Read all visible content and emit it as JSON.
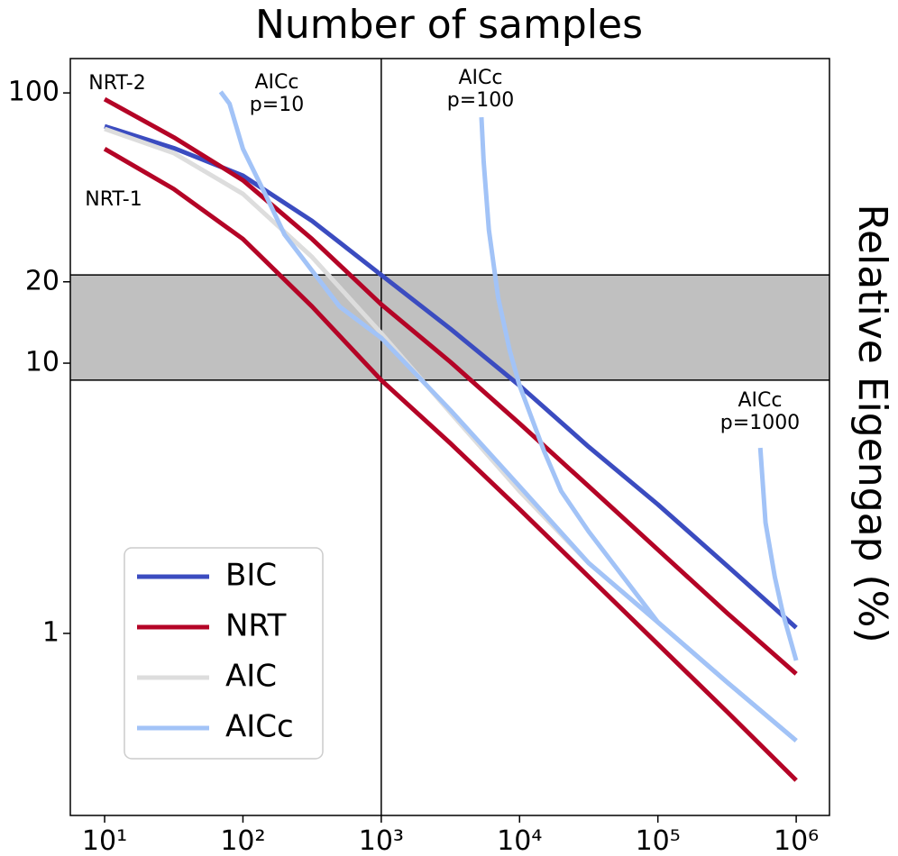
{
  "chart_data": {
    "type": "line",
    "title": "Number of samples",
    "y_label": "Relative Eigengap (%)",
    "xscale": "log",
    "yscale": "log",
    "xlim": [
      5.65,
      1740000
    ],
    "ylim": [
      0.212,
      134
    ],
    "xticks": [
      {
        "value": 10,
        "label": "10¹"
      },
      {
        "value": 100,
        "label": "10²"
      },
      {
        "value": 1000,
        "label": "10³"
      },
      {
        "value": 10000,
        "label": "10⁴"
      },
      {
        "value": 100000,
        "label": "10⁵"
      },
      {
        "value": 1000000,
        "label": "10⁶"
      }
    ],
    "yticks": [
      1,
      10,
      20,
      100
    ],
    "band": [
      8.65,
      21.2
    ],
    "band_color": "#c0c0c0",
    "vline": 1000,
    "series": [
      {
        "name": "BIC",
        "color": "#3b4cc0",
        "curves": [
          {
            "x": [
              10,
              31.6,
              100,
              316,
              1000,
              3162,
              10000,
              31623,
              100000,
              316228,
              1000000
            ],
            "values": [
              75.3,
              62.5,
              49.4,
              33.6,
              21.2,
              13.4,
              8.26,
              4.9,
              3.0,
              1.78,
              1.05
            ]
          }
        ]
      },
      {
        "name": "NRT",
        "color": "#b40426",
        "curves": [
          {
            "label": [
              "NRT-2"
            ],
            "x": [
              10,
              31.6,
              100,
              316,
              1000,
              3162,
              10000,
              31623,
              100000,
              316228,
              1000000
            ],
            "values": [
              94.8,
              68.5,
              47.5,
              28.8,
              16.5,
              10.1,
              5.98,
              3.5,
              2.04,
              1.19,
              0.708
            ]
          },
          {
            "label": [
              "NRT-1"
            ],
            "x": [
              10,
              31.6,
              100,
              316,
              1000,
              3162,
              10000,
              31623,
              100000,
              316228,
              1000000
            ],
            "values": [
              62.1,
              44.1,
              28.8,
              16.2,
              8.65,
              5.05,
              2.88,
              1.62,
              0.912,
              0.513,
              0.286
            ]
          }
        ]
      },
      {
        "name": "AIC",
        "color": "#dddddd",
        "curves": [
          {
            "x": [
              10,
              31.6,
              100,
              316,
              1000,
              3162,
              10000,
              31623,
              100000,
              316228,
              1000000
            ],
            "values": [
              73.6,
              59.9,
              42.3,
              24.7,
              12.9,
              6.56,
              3.36,
              1.82,
              1.1,
              0.66,
              0.401
            ]
          }
        ]
      },
      {
        "name": "AICc",
        "color": "#a2c3f7",
        "curves": [
          {
            "label": [
              "AICc",
              "p=10"
            ],
            "x": [
              69,
              80,
              100,
              150,
              200,
              316,
              500,
              1000,
              3162,
              10000,
              31623,
              100000,
              316228,
              1000000
            ],
            "values": [
              101,
              91.2,
              62.1,
              40.7,
              29.9,
              22.0,
              16.2,
              12.4,
              6.7,
              3.5,
              1.82,
              1.1,
              0.66,
              0.401
            ]
          },
          {
            "label": [
              "AICc",
              "p=100"
            ],
            "x": [
              5300,
              5500,
              6000,
              7000,
              8500,
              10000,
              15000,
              20000,
              31623,
              100000,
              316228,
              1000000
            ],
            "values": [
              81.3,
              55.7,
              31.1,
              17.5,
              11.1,
              8.26,
              4.74,
              3.36,
              2.38,
              1.1,
              0.66,
              0.401
            ]
          },
          {
            "label": [
              "AICc",
              "p=1000"
            ],
            "x": [
              550000,
              600000,
              700000,
              800000,
              1000000
            ],
            "values": [
              4.86,
              2.57,
              1.62,
              1.19,
              0.794
            ]
          }
        ]
      }
    ]
  }
}
